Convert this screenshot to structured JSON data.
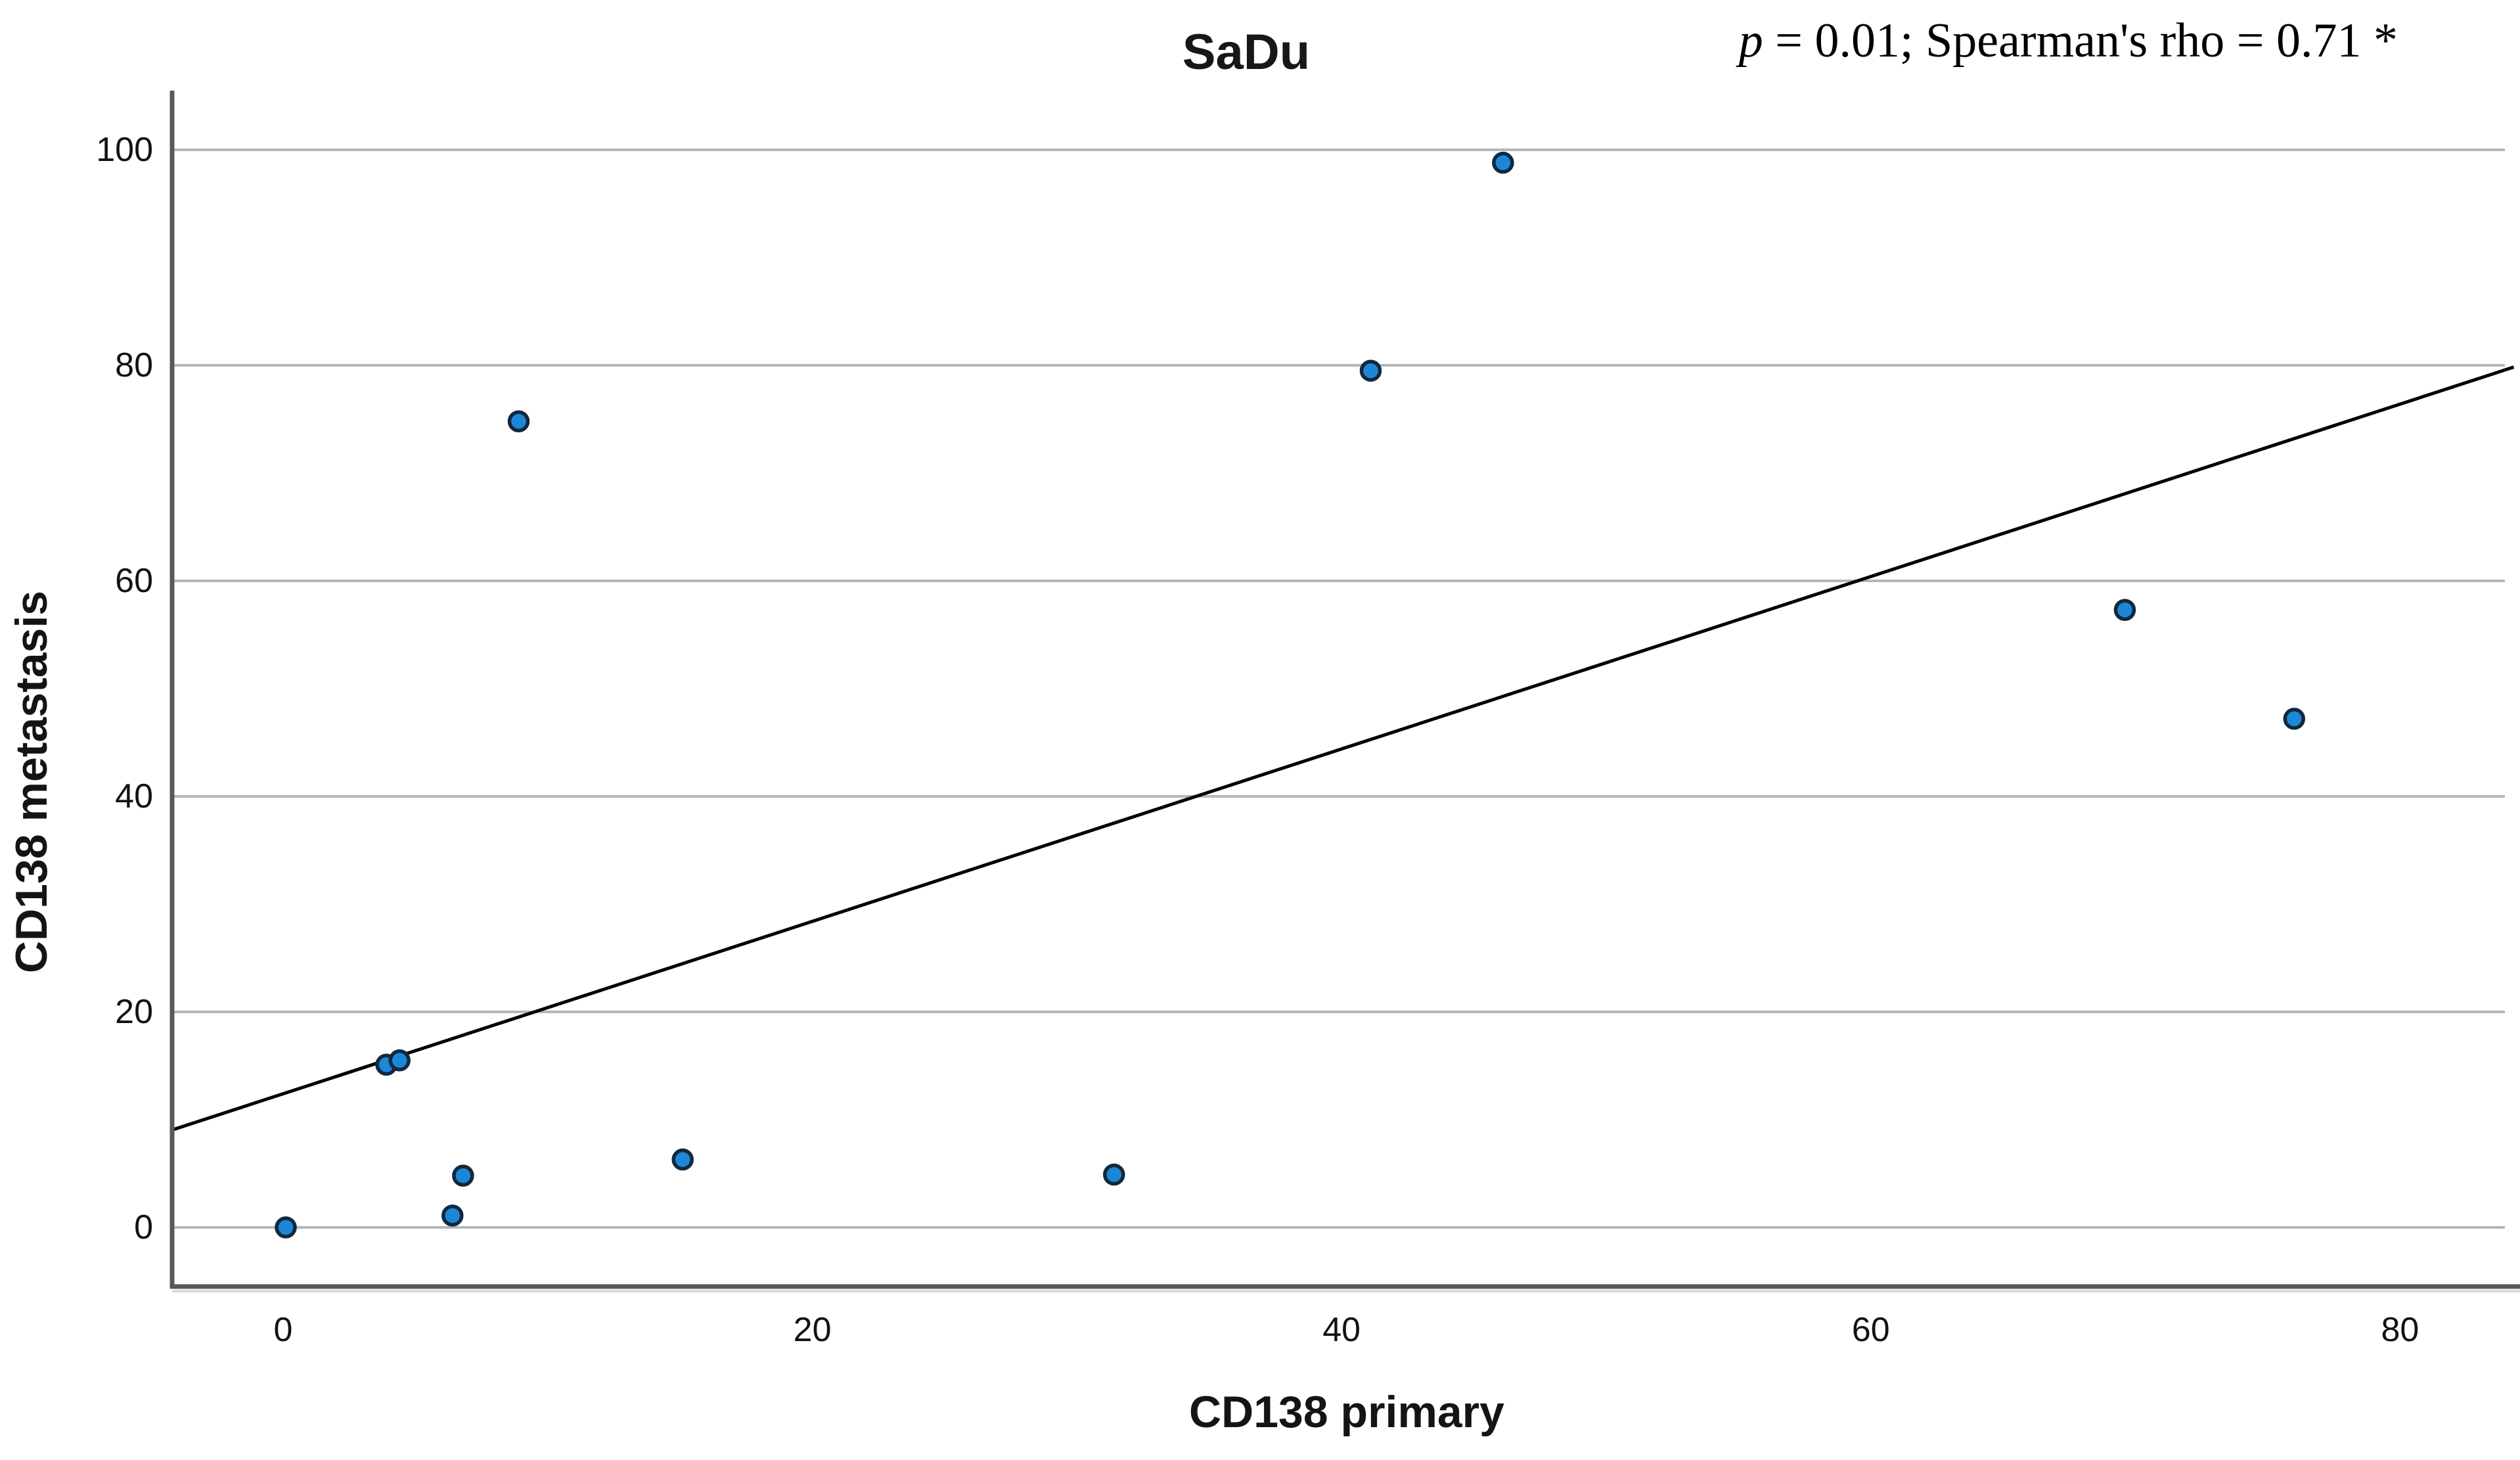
{
  "title": "SaDu",
  "annotation": {
    "p_symbol": "p",
    "rest": " = 0.01; Spearman's rho = 0.71 *"
  },
  "chart_data": {
    "type": "scatter",
    "title": "SaDu",
    "xlabel": "CD138 primary",
    "ylabel": "CD138 metastasis",
    "x_ticks": [
      0,
      20,
      40,
      60,
      80
    ],
    "y_ticks": [
      0,
      20,
      40,
      60,
      80,
      100
    ],
    "xlim": [
      -4.2,
      84.3
    ],
    "ylim": [
      -5.5,
      105.5
    ],
    "grid": "horizontal-only",
    "legend": "none",
    "points": [
      [
        0.1,
        0.0
      ],
      [
        3.9,
        15.1
      ],
      [
        4.4,
        15.5
      ],
      [
        6.4,
        1.1
      ],
      [
        6.8,
        4.8
      ],
      [
        8.9,
        74.8
      ],
      [
        15.1,
        6.3
      ],
      [
        31.4,
        4.9
      ],
      [
        41.1,
        79.5
      ],
      [
        46.1,
        98.8
      ],
      [
        69.6,
        57.3
      ],
      [
        76.0,
        47.2
      ]
    ],
    "trend_line": {
      "slope": 0.8,
      "intercept": 12.4
    },
    "stats": {
      "p_value": "0.01",
      "spearman_rho": "0.71",
      "significance": "*"
    },
    "colors": {
      "point_fill": "#1D87D7",
      "point_stroke": "#12283C",
      "grid": "#B5B8BA",
      "axis": "#58595A",
      "trend": "#000000",
      "background": "#FFFFFF"
    }
  }
}
